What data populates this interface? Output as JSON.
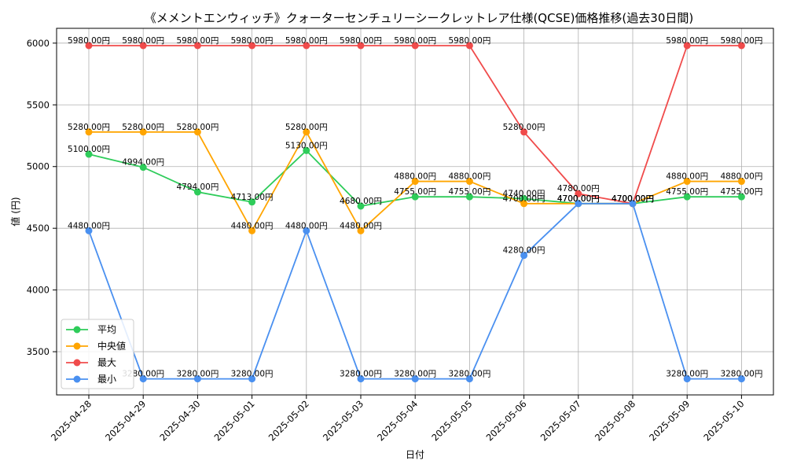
{
  "chart_data": {
    "type": "line",
    "title": "《メメントエンウィッチ》クォーターセンチュリーシークレットレア仕様(QCSE)価格推移(過去30日間)",
    "xlabel": "日付",
    "ylabel": "値 (円)",
    "ylim": [
      3150,
      6120
    ],
    "yticks": [
      3500,
      4000,
      4500,
      5000,
      5500,
      6000
    ],
    "grid": true,
    "legend_position": "lower-left",
    "label_suffix": "円",
    "categories": [
      "2025-04-28",
      "2025-04-29",
      "2025-04-30",
      "2025-05-01",
      "2025-05-02",
      "2025-05-03",
      "2025-05-04",
      "2025-05-05",
      "2025-05-06",
      "2025-05-07",
      "2025-05-08",
      "2025-05-09",
      "2025-05-10"
    ],
    "series": [
      {
        "name": "平均",
        "color": "#2ecc5a",
        "values": [
          5100,
          4994,
          4794,
          4713,
          5130,
          4680,
          4755,
          4755,
          4740,
          4700,
          4700,
          4755,
          4755
        ]
      },
      {
        "name": "中央値",
        "color": "#ffa500",
        "values": [
          5280,
          5280,
          5280,
          4480,
          5280,
          4480,
          4880,
          4880,
          4700,
          4700,
          4700,
          4880,
          4880
        ]
      },
      {
        "name": "最大",
        "color": "#f04b4b",
        "values": [
          5980,
          5980,
          5980,
          5980,
          5980,
          5980,
          5980,
          5980,
          5280,
          4780,
          4700,
          5980,
          5980
        ]
      },
      {
        "name": "最小",
        "color": "#4a90f0",
        "values": [
          4480,
          3280,
          3280,
          3280,
          4480,
          3280,
          3280,
          3280,
          4280,
          4700,
          4700,
          3280,
          3280
        ]
      }
    ]
  }
}
